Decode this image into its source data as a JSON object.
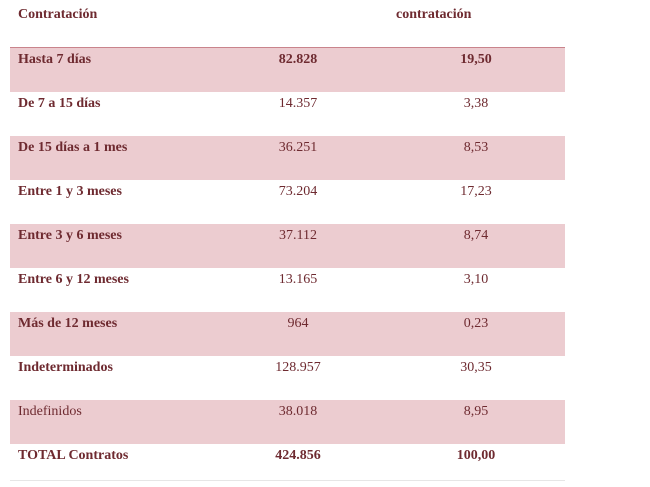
{
  "header": {
    "col1": "Contratación",
    "col3": "contratación"
  },
  "table": {
    "rows": [
      [
        "Hasta 7 días",
        "82.828",
        "19,50"
      ],
      [
        "De  7 a 15 días",
        "14.357",
        "3,38"
      ],
      [
        "De 15 días a 1 mes",
        "36.251",
        "8,53"
      ],
      [
        "Entre 1 y 3 meses",
        "73.204",
        "17,23"
      ],
      [
        "Entre 3 y 6 meses",
        "37.112",
        "8,74"
      ],
      [
        "Entre 6 y 12 meses",
        "13.165",
        "3,10"
      ],
      [
        "Más de 12 meses",
        "964",
        "0,23"
      ],
      [
        "Indeterminados",
        "128.957",
        "30,35"
      ],
      [
        "Indefinidos",
        "38.018",
        "8,95"
      ],
      [
        "TOTAL Contratos",
        "424.856",
        "100,00"
      ]
    ]
  }
}
